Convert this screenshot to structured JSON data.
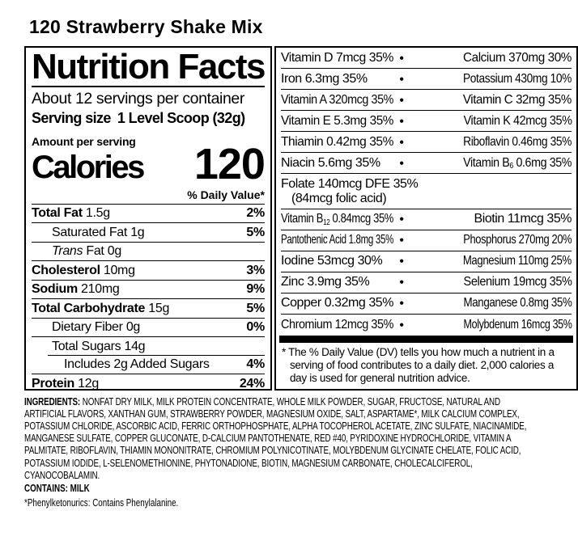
{
  "colors": {
    "background": "#ffffff",
    "ink": "#000000"
  },
  "header": {
    "product_title": "120 Strawberry Shake Mix"
  },
  "nutrition_facts": {
    "heading": "Nutrition Facts",
    "servings_per_container": "About 12 servings per container",
    "serving_size_label": "Serving size",
    "serving_size_value": "1 Level Scoop (32g)",
    "amount_per_serving": "Amount per serving",
    "calories_label": "Calories",
    "calories_value": "120",
    "daily_value_header": "% Daily Value*",
    "rows": [
      {
        "name": "Total Fat",
        "bold": true,
        "amount": "1.5g",
        "dv": "2%",
        "indent": 0
      },
      {
        "name": "Saturated Fat",
        "bold": false,
        "amount": "1g",
        "dv": "5%",
        "indent": 1
      },
      {
        "name": "Trans",
        "italic": true,
        "amount": "Fat 0g",
        "dv": "",
        "indent": 1
      },
      {
        "name": "Cholesterol",
        "bold": true,
        "amount": "10mg",
        "dv": "3%",
        "indent": 0
      },
      {
        "name": "Sodium",
        "bold": true,
        "amount": "210mg",
        "dv": "9%",
        "indent": 0
      },
      {
        "name": "Total Carbohydrate",
        "bold": true,
        "amount": "15g",
        "dv": "5%",
        "indent": 0
      },
      {
        "name": "Dietary Fiber",
        "bold": false,
        "amount": "0g",
        "dv": "0%",
        "indent": 1
      },
      {
        "name": "Total Sugars",
        "bold": false,
        "amount": "14g",
        "dv": "",
        "indent": 1
      },
      {
        "name": "Includes 2g Added Sugars",
        "bold": false,
        "amount": "",
        "dv": "4%",
        "indent": 2,
        "sep_indent": true
      },
      {
        "name": "Protein",
        "bold": true,
        "amount": "12g",
        "dv": "24%",
        "indent": 0
      }
    ]
  },
  "micronutrients": {
    "bullet": "●",
    "rows": [
      {
        "left": "Vitamin D 7mcg 35%",
        "right": "Calcium 370mg 30%"
      },
      {
        "left": "Iron 6.3mg 35%",
        "right": "Potassium 430mg 10%"
      },
      {
        "left": "Vitamin A 320mcg 35%",
        "right": "Vitamin C 32mg 35%"
      },
      {
        "left": "Vitamin E 5.3mg 35%",
        "right": "Vitamin K 42mcg 35%"
      },
      {
        "left": "Thiamin 0.42mg 35%",
        "right": "Riboflavin 0.46mg 35%"
      },
      {
        "left": "Niacin 5.6mg 35%",
        "right": "Vitamin B~6~ 0.6mg 35%"
      },
      {
        "left": "Folate 140mcg DFE 35%",
        "sub_line": "(84mcg folic acid)",
        "right": ""
      },
      {
        "left": "Vitamin B~12~ 0.84mcg 35%",
        "right": "Biotin 11mcg 35%"
      },
      {
        "left": "Pantothenic Acid 1.8mg 35%",
        "right": "Phosphorus 270mg 20%"
      },
      {
        "left": "Iodine 53mcg 30%",
        "right": "Magnesium 110mg 25%"
      },
      {
        "left": "Zinc 3.9mg 35%",
        "right": "Selenium 19mcg 35%"
      },
      {
        "left": "Copper 0.32mg 35%",
        "right": "Manganese 0.8mg 35%"
      },
      {
        "left": "Chromium 12mcg 35%",
        "right": "Molybdenum 16mcg 35%"
      }
    ],
    "footnote": "* The % Daily Value (DV) tells you how much a nutrient in a serving of food contributes to a daily diet. 2,000 calories a day is used for general nutrition advice."
  },
  "ingredients": {
    "label": "INGREDIENTS:",
    "text": "NONFAT DRY MILK, MILK PROTEIN CONCENTRATE, WHOLE MILK POWDER, SUGAR, FRUCTOSE, NATURAL AND ARTIFICIAL FLAVORS, XANTHAN GUM, STRAWBERRY POWDER, MAGNESIUM OXIDE, SALT, ASPARTAME*, MILK CALCIUM COMPLEX, POTASSIUM CHLORIDE, ASCORBIC ACID, FERRIC ORTHOPHOSPHATE, ALPHA TOCOPHEROL ACETATE, ZINC SULFATE, NIACINAMIDE, MANGANESE SULFATE, COPPER GLUCONATE, D-CALCIUM PANTOTHENATE, RED #40, PYRIDOXINE HYDROCHLORIDE, VITAMIN A PALMITATE, RIBOFLAVIN, THIAMIN MONONITRATE, CHROMIUM POLYNICOTINATE, MOLYBDENUM GLYCINATE CHELATE, FOLIC ACID, POTASSIUM IODIDE, L-SELENOMETHIONINE, PHYTONADIONE, BIOTIN, MAGNESIUM CARBONATE, CHOLECALCIFEROL, CYANOCOBALAMIN.",
    "contains_statement": "CONTAINS: MILK",
    "phenylketonurics_note": "*Phenylketonurics: Contains Phenylalanine."
  }
}
